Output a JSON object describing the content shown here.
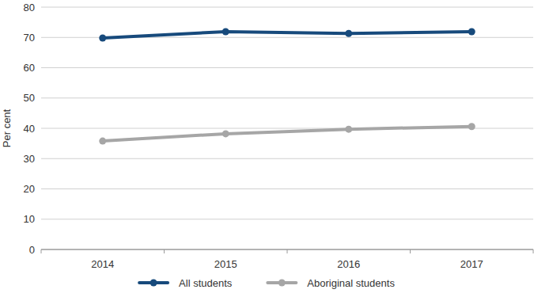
{
  "chart_data": {
    "type": "line",
    "y_label": "Per cent",
    "categories": [
      "2014",
      "2015",
      "2016",
      "2017"
    ],
    "series": [
      {
        "name": "All students",
        "color": "#174a7c",
        "marker": "circle",
        "values": [
          69.8,
          71.9,
          71.3,
          71.9
        ]
      },
      {
        "name": "Aboriginal students",
        "color": "#a6a6a6",
        "marker": "circle",
        "values": [
          35.8,
          38.2,
          39.7,
          40.6
        ]
      }
    ],
    "ylim": [
      0,
      80
    ],
    "yticks": [
      0,
      10,
      20,
      30,
      40,
      50,
      60,
      70,
      80
    ],
    "grid": true,
    "legend": "bottom"
  }
}
